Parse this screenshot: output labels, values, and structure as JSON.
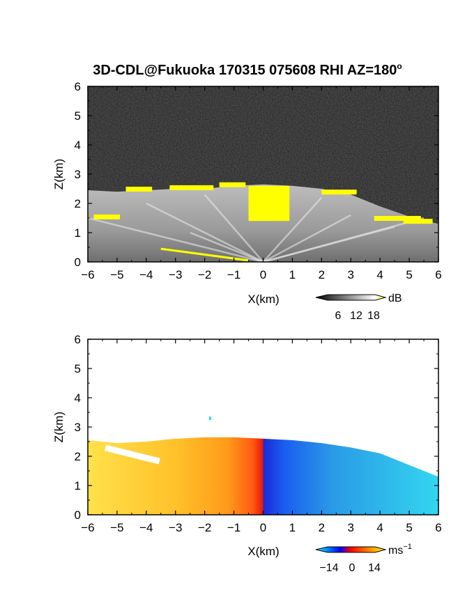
{
  "title": "3D-CDL@Fukuoka 170315 075608 RHI AZ=180",
  "title_superscript": "o",
  "chart_data": [
    {
      "type": "heatmap",
      "quantity": "reflectivity",
      "xlabel": "X(km)",
      "ylabel": "Z(km)",
      "xlim": [
        -6,
        6
      ],
      "ylim": [
        0,
        6
      ],
      "x_ticks": [
        "-6",
        "-5",
        "-4",
        "-3",
        "-2",
        "-1",
        "0",
        "1",
        "2",
        "3",
        "4",
        "5",
        "6"
      ],
      "y_ticks": [
        "0",
        "1",
        "2",
        "3",
        "4",
        "5",
        "6"
      ],
      "colorbar": {
        "unit": "dB",
        "ticks": [
          "6",
          "12",
          "18"
        ],
        "range": [
          0,
          21
        ],
        "colors": [
          "#000000",
          "#ffffff",
          "#ffff00"
        ]
      },
      "echo_top_km": [
        [
          -6,
          2.45
        ],
        [
          -5,
          2.4
        ],
        [
          -4,
          2.45
        ],
        [
          -3,
          2.5
        ],
        [
          -2,
          2.5
        ],
        [
          -1,
          2.6
        ],
        [
          0,
          2.65
        ],
        [
          1,
          2.6
        ],
        [
          2,
          2.5
        ],
        [
          3,
          2.3
        ],
        [
          4,
          1.9
        ],
        [
          5,
          1.55
        ],
        [
          6,
          1.3
        ]
      ],
      "saturated_region": {
        "x": [
          -0.5,
          0.9
        ],
        "z": [
          1.4,
          2.6
        ]
      }
    },
    {
      "type": "heatmap",
      "quantity": "radial velocity",
      "xlabel": "X(km)",
      "ylabel": "Z(km)",
      "xlim": [
        -6,
        6
      ],
      "ylim": [
        0,
        6
      ],
      "x_ticks": [
        "-6",
        "-5",
        "-4",
        "-3",
        "-2",
        "-1",
        "0",
        "1",
        "2",
        "3",
        "4",
        "5",
        "6"
      ],
      "y_ticks": [
        "0",
        "1",
        "2",
        "3",
        "4",
        "5",
        "6"
      ],
      "colorbar": {
        "unit": "ms",
        "unit_superscript": "−1",
        "ticks": [
          "−14",
          "0",
          "14"
        ],
        "range": [
          -21,
          21
        ],
        "colors": [
          "#00ffff",
          "#0000ff",
          "#ff0000",
          "#ffff00"
        ]
      },
      "echo_top_km": [
        [
          -6,
          2.55
        ],
        [
          -5,
          2.45
        ],
        [
          -4,
          2.5
        ],
        [
          -3,
          2.6
        ],
        [
          -2,
          2.65
        ],
        [
          -1,
          2.65
        ],
        [
          0,
          2.6
        ],
        [
          1,
          2.55
        ],
        [
          2,
          2.45
        ],
        [
          3,
          2.3
        ],
        [
          4,
          2.1
        ],
        [
          5,
          1.7
        ],
        [
          6,
          1.3
        ]
      ],
      "sign_change_x_km": 0.0
    }
  ]
}
